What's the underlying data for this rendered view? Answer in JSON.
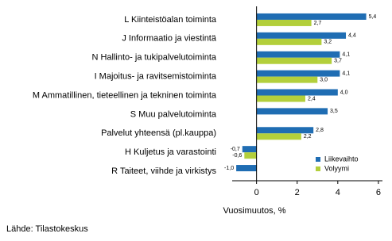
{
  "chart_data": {
    "type": "hbar",
    "categories": [
      "L Kiinteistöalan toiminta",
      "J Informaatio ja viestintä",
      "N Hallinto- ja tukipalvelutoiminta",
      "I Majoitus- ja ravitsemistoiminta",
      "M Ammatillinen, tieteellinen ja tekninen toiminta",
      "S Muu palvelutoiminta",
      "Palvelut yhteensä (pl.kauppa)",
      "H Kuljetus ja varastointi",
      "R Taiteet, viihde ja virkistys"
    ],
    "series": [
      {
        "name": "Liikevaihto",
        "color": "#1f6db3",
        "values": [
          5.4,
          4.4,
          4.1,
          4.1,
          4.0,
          3.5,
          2.8,
          -0.7,
          -1.0
        ],
        "value_labels": [
          "5,4",
          "4,4",
          "4,1",
          "4,1",
          "4,0",
          "3,5",
          "2,8",
          "-0,7",
          "-1,0"
        ]
      },
      {
        "name": "Volyymi",
        "color": "#b3cf3b",
        "values": [
          2.7,
          3.2,
          3.7,
          3.0,
          2.4,
          null,
          2.2,
          -0.6,
          null
        ],
        "value_labels": [
          "2,7",
          "3,2",
          "3,7",
          "3,0",
          "2,4",
          null,
          "2,2",
          "-0,6",
          null
        ]
      }
    ],
    "xlim": [
      -1.2,
      6.2
    ],
    "xticks": [
      0,
      2,
      4,
      6
    ],
    "xlabel": "Vuosimuutos, %",
    "source": "Lähde: Tilastokeskus",
    "legend": "lower right"
  }
}
